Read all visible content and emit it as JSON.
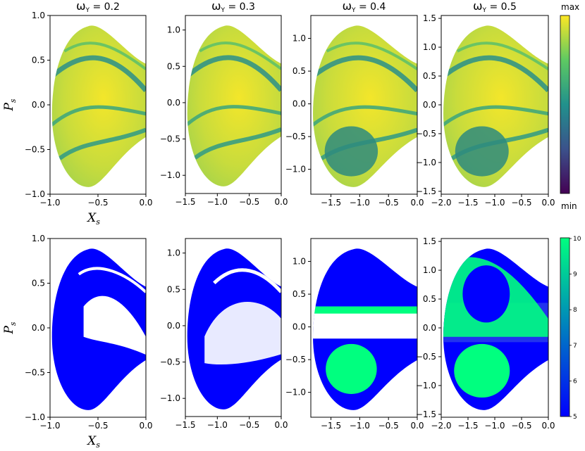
{
  "figure": {
    "colorbar_top": {
      "max_label": "max",
      "min_label": "min",
      "cmap": [
        "#440154",
        "#3b528b",
        "#21918c",
        "#5ec962",
        "#fde725"
      ]
    },
    "colorbar_bottom": {
      "ticks": [
        "10",
        "9",
        "8",
        "7",
        "6",
        "5"
      ],
      "cmap": [
        "#0000ff",
        "#00ff7f"
      ]
    },
    "xlabel": "X",
    "xlabel_sub": "s",
    "ylabel": "P",
    "ylabel_sub": "s"
  },
  "chart_data": [
    {
      "type": "heatmap",
      "row": "top",
      "title": "ωY = 0.2",
      "title_main": "ω",
      "title_sub": "Y",
      "title_rest": " = 0.2",
      "xlim": [
        -1.0,
        0.0
      ],
      "ylim": [
        -1.0,
        1.0
      ],
      "xticks": [
        "−1.0",
        "−0.5",
        "0.0"
      ],
      "xtick_values": [
        -1.0,
        -0.5,
        0.0
      ],
      "yticks": [
        "1.0",
        "0.5",
        "0.0",
        "−0.5",
        "−1.0"
      ],
      "ytick_values": [
        1.0,
        0.5,
        0.0,
        -0.5,
        -1.0
      ]
    },
    {
      "type": "heatmap",
      "row": "top",
      "title": "ωY = 0.3",
      "title_main": "ω",
      "title_sub": "Y",
      "title_rest": " = 0.3",
      "xlim": [
        -1.5,
        0.0
      ],
      "ylim": [
        -1.25,
        1.2
      ],
      "xticks": [
        "−1.5",
        "−1.0",
        "−0.5",
        "0.0"
      ],
      "xtick_values": [
        -1.5,
        -1.0,
        -0.5,
        0.0
      ],
      "yticks": [
        "1.0",
        "0.5",
        "0.0",
        "−0.5",
        "−1.0"
      ],
      "ytick_values": [
        1.0,
        0.5,
        0.0,
        -0.5,
        -1.0
      ]
    },
    {
      "type": "heatmap",
      "row": "top",
      "title": "ωY = 0.4",
      "title_main": "ω",
      "title_sub": "Y",
      "title_rest": " = 0.4",
      "xlim": [
        -1.85,
        0.0
      ],
      "ylim": [
        -1.38,
        1.35
      ],
      "xticks": [
        "−1.5",
        "−1.0",
        "−0.5",
        "0.0"
      ],
      "xtick_values": [
        -1.5,
        -1.0,
        -0.5,
        0.0
      ],
      "yticks": [
        "1.0",
        "0.5",
        "0.0",
        "−0.5",
        "−1.0"
      ],
      "ytick_values": [
        1.0,
        0.5,
        0.0,
        -0.5,
        -1.0
      ]
    },
    {
      "type": "heatmap",
      "row": "top",
      "title": "ωY = 0.5",
      "title_main": "ω",
      "title_sub": "Y",
      "title_rest": " = 0.5",
      "xlim": [
        -2.0,
        0.0
      ],
      "ylim": [
        -1.55,
        1.55
      ],
      "xticks": [
        "−2.0",
        "−1.5",
        "−1.0",
        "−0.5",
        "0.0"
      ],
      "xtick_values": [
        -2.0,
        -1.5,
        -1.0,
        -0.5,
        0.0
      ],
      "yticks": [
        "1.5",
        "1.0",
        "0.5",
        "0.0",
        "−0.5",
        "−1.0",
        "−1.5"
      ],
      "ytick_values": [
        1.5,
        1.0,
        0.5,
        0.0,
        -0.5,
        -1.0,
        -1.5
      ]
    },
    {
      "type": "heatmap",
      "row": "bottom",
      "title": "",
      "xlim": [
        -1.0,
        0.0
      ],
      "ylim": [
        -1.0,
        1.0
      ],
      "xticks": [
        "−1.0",
        "−0.5",
        "0.0"
      ],
      "xtick_values": [
        -1.0,
        -0.5,
        0.0
      ],
      "yticks": [
        "1.0",
        "0.5",
        "0.0",
        "−0.5",
        "−1.0"
      ],
      "ytick_values": [
        1.0,
        0.5,
        0.0,
        -0.5,
        -1.0
      ]
    },
    {
      "type": "heatmap",
      "row": "bottom",
      "title": "",
      "xlim": [
        -1.5,
        0.0
      ],
      "ylim": [
        -1.25,
        1.2
      ],
      "xticks": [
        "−1.5",
        "−1.0",
        "−0.5",
        "0.0"
      ],
      "xtick_values": [
        -1.5,
        -1.0,
        -0.5,
        0.0
      ],
      "yticks": [
        "1.0",
        "0.5",
        "0.0",
        "−0.5",
        "−1.0"
      ],
      "ytick_values": [
        1.0,
        0.5,
        0.0,
        -0.5,
        -1.0
      ]
    },
    {
      "type": "heatmap",
      "row": "bottom",
      "title": "",
      "xlim": [
        -1.85,
        0.0
      ],
      "ylim": [
        -1.38,
        1.35
      ],
      "xticks": [
        "−1.5",
        "−1.0",
        "−0.5",
        "0.0"
      ],
      "xtick_values": [
        -1.5,
        -1.0,
        -0.5,
        0.0
      ],
      "yticks": [
        "1.0",
        "0.5",
        "0.0",
        "−0.5",
        "−1.0"
      ],
      "ytick_values": [
        1.0,
        0.5,
        0.0,
        -0.5,
        -1.0
      ]
    },
    {
      "type": "heatmap",
      "row": "bottom",
      "title": "",
      "xlim": [
        -2.0,
        0.0
      ],
      "ylim": [
        -1.55,
        1.55
      ],
      "xticks": [
        "−2.0",
        "−1.5",
        "−1.0",
        "−0.5",
        "0.0"
      ],
      "xtick_values": [
        -2.0,
        -1.5,
        -1.0,
        -0.5,
        0.0
      ],
      "yticks": [
        "1.5",
        "1.0",
        "0.5",
        "0.0",
        "−0.5",
        "−1.0",
        "−1.5"
      ],
      "ytick_values": [
        1.5,
        1.0,
        0.5,
        0.0,
        -0.5,
        -1.0,
        -1.5
      ]
    }
  ]
}
